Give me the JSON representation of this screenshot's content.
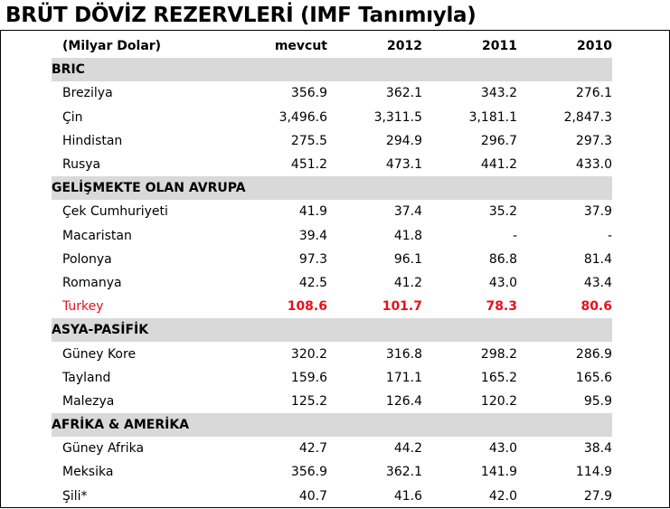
{
  "title": "BRÜT DÖVİZ REZERVLERİ (IMF Tanımıyla)",
  "chart_data": {
    "type": "table",
    "unit_label": "(Milyar Dolar)",
    "columns": [
      "mevcut",
      "2012",
      "2011",
      "2010"
    ],
    "highlight_color": "#e8101a",
    "groups": [
      {
        "name": "BRIC",
        "rows": [
          {
            "name": "Brezilya",
            "values": [
              "356.9",
              "362.1",
              "343.2",
              "276.1"
            ]
          },
          {
            "name": "Çin",
            "values": [
              "3,496.6",
              "3,311.5",
              "3,181.1",
              "2,847.3"
            ]
          },
          {
            "name": "Hindistan",
            "values": [
              "275.5",
              "294.9",
              "296.7",
              "297.3"
            ]
          },
          {
            "name": "Rusya",
            "values": [
              "451.2",
              "473.1",
              "441.2",
              "433.0"
            ]
          }
        ]
      },
      {
        "name": "GELİŞMEKTE OLAN AVRUPA",
        "rows": [
          {
            "name": "Çek Cumhuriyeti",
            "values": [
              "41.9",
              "37.4",
              "35.2",
              "37.9"
            ]
          },
          {
            "name": "Macaristan",
            "values": [
              "39.4",
              "41.8",
              "-",
              "-"
            ]
          },
          {
            "name": "Polonya",
            "values": [
              "97.3",
              "96.1",
              "86.8",
              "81.4"
            ]
          },
          {
            "name": "Romanya",
            "values": [
              "42.5",
              "41.2",
              "43.0",
              "43.4"
            ]
          },
          {
            "name": "Turkey",
            "values": [
              "108.6",
              "101.7",
              "78.3",
              "80.6"
            ],
            "highlight": true
          }
        ]
      },
      {
        "name": "ASYA-PASİFİK",
        "rows": [
          {
            "name": "Güney Kore",
            "values": [
              "320.2",
              "316.8",
              "298.2",
              "286.9"
            ]
          },
          {
            "name": "Tayland",
            "values": [
              "159.6",
              "171.1",
              "165.2",
              "165.6"
            ]
          },
          {
            "name": "Malezya",
            "values": [
              "125.2",
              "126.4",
              "120.2",
              "95.9"
            ]
          }
        ]
      },
      {
        "name": "AFRİKA & AMERİKA",
        "rows": [
          {
            "name": "Güney Afrika",
            "values": [
              "42.7",
              "44.2",
              "43.0",
              "38.4"
            ]
          },
          {
            "name": "Meksika",
            "values": [
              "356.9",
              "362.1",
              "141.9",
              "114.9"
            ]
          },
          {
            "name": "Şili*",
            "values": [
              "40.7",
              "41.6",
              "42.0",
              "27.9"
            ]
          }
        ]
      }
    ]
  }
}
